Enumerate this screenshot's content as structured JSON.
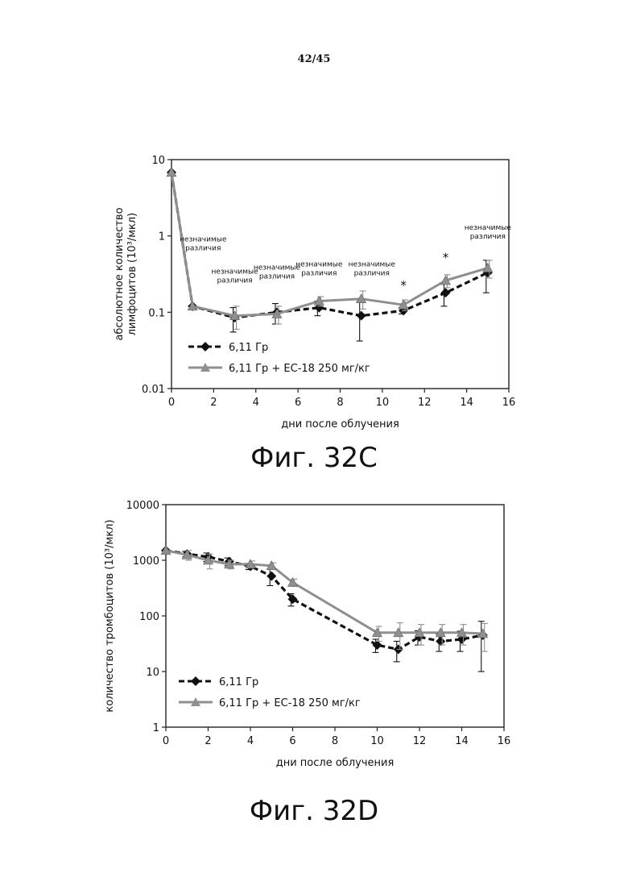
{
  "page": {
    "number": "42/45"
  },
  "figures": [
    {
      "caption": "Фиг. 32C"
    },
    {
      "caption": "Фиг. 32D"
    }
  ],
  "colors": {
    "series_a": "#111111",
    "series_b": "#8f8f8f",
    "axis": "#222222"
  },
  "chart_data": [
    {
      "type": "line",
      "xlabel": "дни после облучения",
      "ylabel_lines": [
        "абсолютное количество",
        "лимфоцитов (10³/мкл)"
      ],
      "xlim": [
        0,
        16
      ],
      "ylim": [
        0.01,
        10
      ],
      "yscale": "log",
      "xticks": [
        0,
        2,
        4,
        6,
        8,
        10,
        12,
        14,
        16
      ],
      "yticks": [
        0.01,
        0.1,
        1,
        10
      ],
      "ytick_labels": [
        "0.01",
        "0.1",
        "1",
        "10"
      ],
      "legend_position": "bottom-left",
      "series": [
        {
          "name": "6,11 Гр",
          "style": "dashed-diamond",
          "x": [
            0,
            1,
            3,
            5,
            7,
            9,
            11,
            13,
            15
          ],
          "y": [
            6.8,
            0.12,
            0.085,
            0.1,
            0.115,
            0.09,
            0.105,
            0.18,
            0.33
          ],
          "err": [
            0,
            0,
            0.03,
            0.03,
            0.025,
            0.048,
            0.01,
            0.06,
            0.15
          ]
        },
        {
          "name": "6,11 Гр + EC-18 250 мг/кг",
          "style": "solid-triangle",
          "x": [
            0,
            1,
            3,
            5,
            7,
            9,
            11,
            13,
            15
          ],
          "y": [
            6.8,
            0.12,
            0.09,
            0.095,
            0.14,
            0.15,
            0.125,
            0.26,
            0.38
          ],
          "err": [
            0,
            0,
            0.03,
            0.025,
            0.02,
            0.04,
            0.02,
            0.05,
            0.1
          ]
        }
      ],
      "annotations": [
        {
          "x": 1.5,
          "y": 0.85,
          "lines": [
            "незначимые",
            "различия"
          ]
        },
        {
          "x": 3,
          "y": 0.32,
          "lines": [
            "незначимые",
            "различия"
          ]
        },
        {
          "x": 5,
          "y": 0.36,
          "lines": [
            "незначимые",
            "различия"
          ]
        },
        {
          "x": 7,
          "y": 0.4,
          "lines": [
            "незначимые",
            "различия"
          ]
        },
        {
          "x": 9.5,
          "y": 0.4,
          "lines": [
            "незначимые",
            "различия"
          ]
        },
        {
          "x": 11,
          "y": 0.2,
          "lines": [
            "*"
          ]
        },
        {
          "x": 13,
          "y": 0.46,
          "lines": [
            "*"
          ]
        },
        {
          "x": 15,
          "y": 1.2,
          "lines": [
            "незначимые",
            "различия"
          ]
        }
      ]
    },
    {
      "type": "line",
      "xlabel": "дни после облучения",
      "ylabel_lines": [
        "количество тромбоцитов (10³/мкл)"
      ],
      "xlim": [
        0,
        16
      ],
      "ylim": [
        1,
        10000
      ],
      "yscale": "log",
      "xticks": [
        0,
        2,
        4,
        6,
        8,
        10,
        12,
        14,
        16
      ],
      "yticks": [
        1,
        10,
        100,
        1000,
        10000
      ],
      "ytick_labels": [
        "1",
        "10",
        "100",
        "1000",
        "10000"
      ],
      "legend_position": "bottom-left",
      "series": [
        {
          "name": "6,11 Гр",
          "style": "dashed-diamond",
          "x": [
            0,
            1,
            2,
            3,
            4,
            5,
            6,
            10,
            11,
            12,
            13,
            14,
            15
          ],
          "y": [
            1500,
            1300,
            1150,
            950,
            780,
            520,
            200,
            30,
            25,
            42,
            35,
            38,
            45
          ],
          "err": [
            0,
            150,
            200,
            150,
            100,
            170,
            50,
            8,
            10,
            12,
            12,
            15,
            35
          ]
        },
        {
          "name": "6,11 Гр + EC-18 250 мг/кг",
          "style": "solid-triangle",
          "x": [
            0,
            1,
            2,
            3,
            4,
            5,
            6,
            10,
            11,
            12,
            13,
            14,
            15
          ],
          "y": [
            1500,
            1250,
            1000,
            850,
            850,
            800,
            400,
            50,
            50,
            50,
            50,
            50,
            48
          ],
          "err": [
            0,
            250,
            300,
            150,
            120,
            100,
            60,
            15,
            25,
            20,
            20,
            20,
            25
          ]
        }
      ]
    }
  ]
}
